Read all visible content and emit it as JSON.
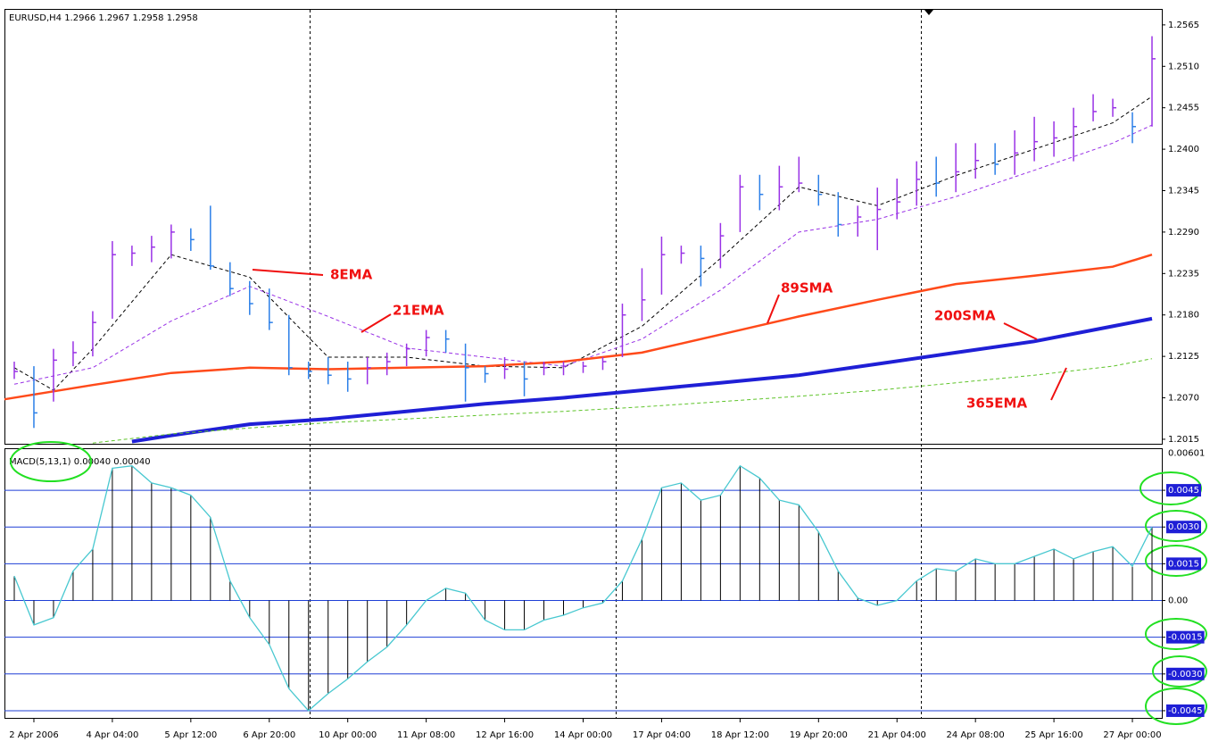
{
  "chart_data": [
    {
      "type": "ohlc",
      "title": "EURUSD,H4  1.2966 1.2967 1.2958 1.2958",
      "high": [
        1.2118,
        1.2112,
        1.2135,
        1.2145,
        1.2185,
        1.2278,
        1.2272,
        1.2285,
        1.23,
        1.2295,
        1.2325,
        1.225,
        1.2225,
        1.2215,
        1.218,
        1.2118,
        1.2124,
        1.2118,
        1.2124,
        1.213,
        1.2142,
        1.216,
        1.216,
        1.2142,
        1.2112,
        1.2124,
        1.2118,
        1.2118,
        1.2118,
        1.2118,
        1.2124,
        1.2195,
        1.2242,
        1.2284,
        1.2272,
        1.2272,
        1.2302,
        1.2366,
        1.2366,
        1.2378,
        1.239,
        1.2366,
        1.2343,
        1.2325,
        1.2349,
        1.2361,
        1.2384,
        1.239,
        1.2408,
        1.2408,
        1.2408,
        1.2425,
        1.2443,
        1.2437,
        1.2455,
        1.2473,
        1.2467,
        1.2449,
        1.255
      ],
      "low": [
        1.2095,
        1.203,
        1.2065,
        1.2112,
        1.2125,
        1.2175,
        1.2245,
        1.225,
        1.2255,
        1.2265,
        1.224,
        1.2205,
        1.218,
        1.216,
        1.21,
        1.2095,
        1.2088,
        1.2078,
        1.2088,
        1.21,
        1.2112,
        1.2125,
        1.213,
        1.2065,
        1.209,
        1.2095,
        1.2072,
        1.21,
        1.21,
        1.2103,
        1.2107,
        1.2124,
        1.2172,
        1.2207,
        1.2248,
        1.2218,
        1.2242,
        1.229,
        1.2319,
        1.2319,
        1.2343,
        1.2325,
        1.2284,
        1.2284,
        1.2266,
        1.2307,
        1.2325,
        1.2337,
        1.2343,
        1.2361,
        1.2366,
        1.2366,
        1.2384,
        1.239,
        1.2384,
        1.2437,
        1.2443,
        1.2408,
        1.243
      ],
      "close": [
        1.2105,
        1.205,
        1.212,
        1.213,
        1.217,
        1.226,
        1.2262,
        1.227,
        1.229,
        1.228,
        1.2245,
        1.2215,
        1.2195,
        1.217,
        1.211,
        1.2105,
        1.21,
        1.2095,
        1.211,
        1.2118,
        1.2135,
        1.215,
        1.2148,
        1.211,
        1.2102,
        1.2108,
        1.2095,
        1.211,
        1.2112,
        1.2112,
        1.2118,
        1.218,
        1.22,
        1.226,
        1.2262,
        1.2255,
        1.2285,
        1.235,
        1.234,
        1.235,
        1.2355,
        1.234,
        1.23,
        1.231,
        1.232,
        1.233,
        1.236,
        1.2355,
        1.237,
        1.2385,
        1.238,
        1.2395,
        1.241,
        1.2415,
        1.243,
        1.245,
        1.2455,
        1.243,
        1.252
      ],
      "up_color": "#9932e6",
      "down_color": "#2b7fe8",
      "xlim": [
        -0.5,
        58.5
      ],
      "ylim": [
        1.2009,
        1.2585
      ],
      "yticks": [
        1.2565,
        {
          "value": 1.251,
          "label": "1.2510"
        },
        1.2455,
        {
          "value": 1.24,
          "label": "1.2400"
        },
        1.2345,
        {
          "value": 1.229,
          "label": "1.2290"
        },
        1.2235,
        {
          "value": 1.218,
          "label": "1.2180"
        },
        1.2125,
        {
          "value": 1.207,
          "label": "1.2070"
        },
        1.2015
      ],
      "series": [
        {
          "name": "8EMA",
          "color": "#000000",
          "style": "dashed",
          "width": 1,
          "x": [
            0,
            2,
            4,
            8,
            12,
            16,
            20,
            24,
            28,
            32,
            36,
            40,
            44,
            48,
            52,
            56,
            58
          ],
          "values": [
            1.211,
            1.208,
            1.2135,
            1.226,
            1.223,
            1.2124,
            1.2124,
            1.2112,
            1.211,
            1.2165,
            1.2255,
            1.235,
            1.2325,
            1.2365,
            1.24,
            1.2435,
            1.247
          ]
        },
        {
          "name": "21EMA",
          "color": "#9932e6",
          "style": "dashed",
          "width": 1,
          "x": [
            0,
            4,
            8,
            12,
            16,
            20,
            24,
            28,
            32,
            36,
            40,
            44,
            48,
            52,
            56,
            58
          ],
          "values": [
            1.2088,
            1.211,
            1.2172,
            1.2218,
            1.2178,
            1.2136,
            1.2124,
            1.2112,
            1.2148,
            1.2213,
            1.229,
            1.2307,
            1.2337,
            1.2372,
            1.2408,
            1.2432
          ]
        },
        {
          "name": "89SMA",
          "color": "#ff4a1a",
          "style": "solid",
          "width": 2.5,
          "x": [
            -0.5,
            4,
            8,
            12,
            16,
            20,
            24,
            28,
            32,
            36,
            40,
            44,
            48,
            52,
            56,
            58
          ],
          "values": [
            1.2068,
            1.2087,
            1.2103,
            1.211,
            1.2108,
            1.211,
            1.2112,
            1.2118,
            1.213,
            1.2154,
            1.2178,
            1.22,
            1.2221,
            1.2232,
            1.2244,
            1.226
          ]
        },
        {
          "name": "200SMA",
          "color": "#1f1fd6",
          "style": "solid",
          "width": 4,
          "x": [
            6,
            8,
            12,
            16,
            20,
            24,
            28,
            32,
            36,
            40,
            44,
            48,
            52,
            56,
            58
          ],
          "values": [
            1.2012,
            1.202,
            1.2035,
            1.2042,
            1.2052,
            1.2062,
            1.207,
            1.208,
            1.209,
            1.21,
            1.2115,
            1.213,
            1.2145,
            1.2165,
            1.2175
          ]
        },
        {
          "name": "365EMA",
          "color": "#5fc42a",
          "style": "dashed",
          "width": 1,
          "x": [
            4,
            8,
            12,
            16,
            20,
            24,
            28,
            32,
            36,
            40,
            44,
            48,
            52,
            56,
            58
          ],
          "values": [
            1.201,
            1.2022,
            1.203,
            1.2037,
            1.2042,
            1.2047,
            1.2052,
            1.2058,
            1.2065,
            1.2072,
            1.208,
            1.209,
            1.21,
            1.2112,
            1.2122
          ]
        }
      ]
    },
    {
      "type": "macd",
      "title": "MACD(5,13,1) 0.00040 0.00040",
      "values": [
        0.001,
        -0.001,
        -0.0007,
        0.0012,
        0.0021,
        0.0054,
        0.0055,
        0.0048,
        0.0046,
        0.0043,
        0.0034,
        0.0008,
        -0.0007,
        -0.0018,
        -0.0036,
        -0.0045,
        -0.0038,
        -0.0032,
        -0.0025,
        -0.0019,
        -0.001,
        0,
        0.0005,
        0.0003,
        -0.0008,
        -0.0012,
        -0.0012,
        -0.0008,
        -0.0006,
        -0.0003,
        -0.0001,
        0.0008,
        0.0025,
        0.0046,
        0.0048,
        0.0041,
        0.0043,
        0.0055,
        0.005,
        0.0041,
        0.0039,
        0.0028,
        0.0012,
        0.0001,
        -0.0002,
        0,
        0.0008,
        0.0013,
        0.0012,
        0.0017,
        0.0015,
        0.0015,
        0.0018,
        0.0021,
        0.0017,
        0.002,
        0.0022,
        0.0014,
        0.003
      ],
      "color": "#000000",
      "line_color": "#48c8d0",
      "grid_color": "#1f3fd6",
      "xlim": [
        -0.5,
        58.5
      ],
      "ylim": [
        -0.00483,
        0.00618
      ],
      "yhigh": 0.00601,
      "yticks": [
        0.0045,
        {
          "value": 0.003,
          "label": "0.0030"
        },
        0.0015,
        {
          "value": 0,
          "label": "0.00"
        },
        -0.0015,
        {
          "value": -0.003,
          "label": "-0.0030"
        },
        -0.0045
      ],
      "xticks": [
        {
          "value": 1,
          "label": "2 Apr 2006"
        },
        {
          "value": 5,
          "label": "4 Apr 04:00"
        },
        {
          "value": 9,
          "label": "5 Apr 12:00"
        },
        {
          "value": 13,
          "label": "6 Apr 20:00"
        },
        {
          "value": 17,
          "label": "10 Apr 00:00"
        },
        {
          "value": 21,
          "label": "11 Apr 08:00"
        },
        {
          "value": 25,
          "label": "12 Apr 16:00"
        },
        {
          "value": 29,
          "label": "14 Apr 00:00"
        },
        {
          "value": 33,
          "label": "17 Apr 04:00"
        },
        {
          "value": 37,
          "label": "18 Apr 12:00"
        },
        {
          "value": 41,
          "label": "19 Apr 20:00"
        },
        {
          "value": 45,
          "label": "21 Apr 04:00"
        },
        {
          "value": 49,
          "label": "24 Apr 08:00"
        },
        {
          "value": 53,
          "label": "25 Apr 16:00"
        },
        {
          "value": 57,
          "label": "27 Apr 00:00"
        }
      ]
    }
  ]
}
